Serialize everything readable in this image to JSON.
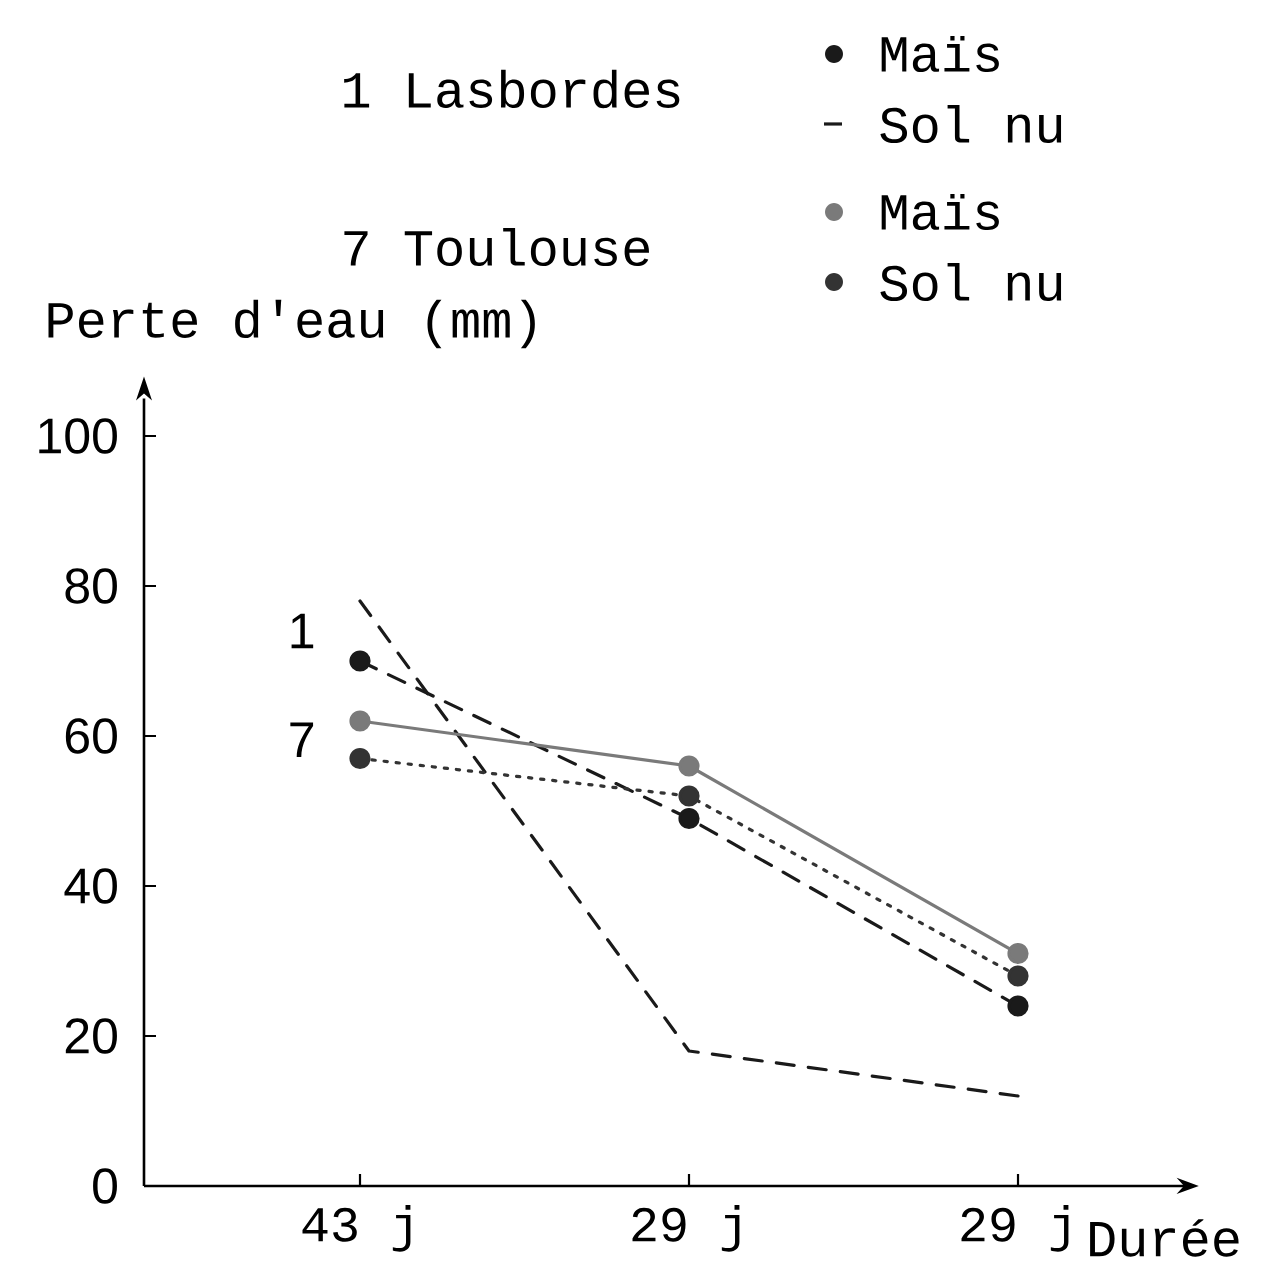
{
  "chart_data": {
    "type": "line",
    "categories": [
      "43 j",
      "29 j",
      "29 j"
    ],
    "xlabel": "Durée",
    "ylabel": "Perte d'eau (mm)",
    "ylim": [
      0,
      105
    ],
    "yticks": [
      0,
      20,
      40,
      60,
      80,
      100
    ],
    "legend": "top",
    "series": [
      {
        "name": "Maïs",
        "color": "#1a1a1a",
        "values": [
          70,
          49,
          24
        ],
        "marker": "circle",
        "line_style": "dashed"
      },
      {
        "name": "Sol nu",
        "color": "#1a1a1a",
        "values": [
          78,
          18,
          12
        ],
        "marker": "none",
        "line_style": "dashed"
      },
      {
        "name": "Maïs",
        "color": "#7a7a7a",
        "values": [
          62,
          56,
          31
        ],
        "marker": "circle",
        "line_style": "solid"
      },
      {
        "name": "Sol nu",
        "color": "#333333",
        "values": [
          57,
          52,
          28
        ],
        "marker": "circle",
        "line_style": "dotted"
      }
    ],
    "annotations": [
      "1 Lasbordes",
      "7 Toulouse",
      "1",
      "7"
    ]
  }
}
